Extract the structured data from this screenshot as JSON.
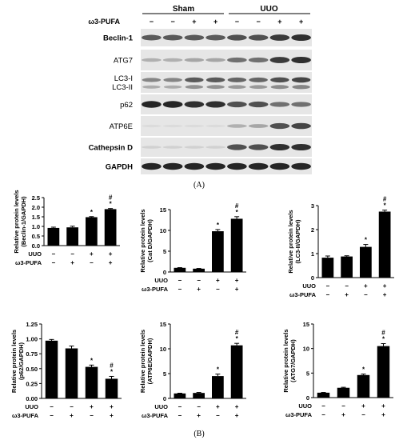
{
  "figure": {
    "panel_a_label": "(A)",
    "panel_b_label": "(B)"
  },
  "blot": {
    "group_headers": [
      "Sham",
      "UUO"
    ],
    "treatment_label": "ω3-PUFA",
    "treatment_signs": [
      "−",
      "−",
      "+",
      "+",
      "−",
      "−",
      "+",
      "+"
    ],
    "rows": [
      {
        "label": "Beclin-1",
        "bold": true,
        "levels": [
          0.65,
          0.65,
          0.65,
          0.65,
          0.7,
          0.7,
          0.8,
          0.85
        ]
      },
      {
        "label": "ATG7",
        "bold": false,
        "levels": [
          0.25,
          0.25,
          0.3,
          0.3,
          0.55,
          0.55,
          0.8,
          0.85
        ]
      },
      {
        "label": "LC3-I",
        "bold": false,
        "levels": [
          0.45,
          0.45,
          0.65,
          0.65,
          0.6,
          0.6,
          0.7,
          0.75
        ]
      },
      {
        "label": "p62",
        "bold": false,
        "levels": [
          0.9,
          0.9,
          0.85,
          0.85,
          0.7,
          0.7,
          0.55,
          0.55
        ]
      },
      {
        "label": "ATP6E",
        "bold": false,
        "levels": [
          0.05,
          0.05,
          0.05,
          0.05,
          0.25,
          0.3,
          0.7,
          0.75
        ]
      },
      {
        "label": "Cathepsin D",
        "bold": true,
        "levels": [
          0.1,
          0.1,
          0.1,
          0.1,
          0.7,
          0.7,
          0.85,
          0.85
        ]
      },
      {
        "label": "GAPDH",
        "bold": true,
        "levels": [
          0.9,
          0.9,
          0.9,
          0.9,
          0.9,
          0.9,
          0.9,
          0.9
        ]
      }
    ],
    "lc3_second_label": "LC3-II"
  },
  "condition_table": {
    "uuo_label": "UUO",
    "pufa_label": "ω3-PUFA",
    "uuo_signs": [
      "−",
      "−",
      "+",
      "+"
    ],
    "pufa_signs": [
      "−",
      "+",
      "−",
      "+"
    ]
  },
  "chart_data": [
    {
      "type": "bar",
      "ylabel": "Relative protein levels\n(Beclin-1/GAPDH)",
      "ylim": [
        0,
        2.5
      ],
      "yticks": [
        "0.0",
        "0.5",
        "1.0",
        "1.5",
        "2.0",
        "2.5"
      ],
      "values": [
        0.92,
        0.95,
        1.48,
        1.9
      ],
      "errors": [
        0.04,
        0.06,
        0.03,
        0.03
      ],
      "annotations": [
        "",
        "",
        "*",
        "#\n*"
      ]
    },
    {
      "type": "bar",
      "ylabel": "Relative protein levels\n(Cat D/GAPDH)",
      "ylim": [
        0,
        15
      ],
      "yticks": [
        "0",
        "5",
        "10",
        "15"
      ],
      "values": [
        1.0,
        0.8,
        9.8,
        12.8
      ],
      "errors": [
        0.05,
        0.05,
        0.4,
        0.5
      ],
      "annotations": [
        "",
        "",
        "*",
        "#\n*"
      ]
    },
    {
      "type": "bar",
      "ylabel": "Relative protein levels\n(LC3-II/GAPDH)",
      "ylim": [
        0,
        3
      ],
      "yticks": [
        "0",
        "1",
        "2",
        "3"
      ],
      "values": [
        0.83,
        0.88,
        1.28,
        2.75
      ],
      "errors": [
        0.07,
        0.03,
        0.1,
        0.06
      ],
      "annotations": [
        "",
        "",
        "*",
        "#\n*"
      ]
    },
    {
      "type": "bar",
      "ylabel": "Relative protein levels\n(p62/GAPDH)",
      "ylim": [
        0,
        1.25
      ],
      "yticks": [
        "0.00",
        "0.25",
        "0.50",
        "0.75",
        "1.00",
        "1.25"
      ],
      "values": [
        0.97,
        0.84,
        0.53,
        0.33
      ],
      "errors": [
        0.02,
        0.04,
        0.03,
        0.04
      ],
      "annotations": [
        "",
        "",
        "*",
        "#\n*"
      ]
    },
    {
      "type": "bar",
      "ylabel": "Relative protein levels\n(ATP6E/GAPDH)",
      "ylim": [
        0,
        15
      ],
      "yticks": [
        "0",
        "5",
        "10",
        "15"
      ],
      "values": [
        1.0,
        1.1,
        4.5,
        10.7
      ],
      "errors": [
        0.05,
        0.1,
        0.4,
        0.4
      ],
      "annotations": [
        "",
        "",
        "*",
        "#\n*"
      ]
    },
    {
      "type": "bar",
      "ylabel": "Relative protein levels\n(ATG7/GAPDH)",
      "ylim": [
        0,
        15
      ],
      "yticks": [
        "0",
        "5",
        "10",
        "15"
      ],
      "values": [
        1.0,
        2.0,
        4.6,
        10.5
      ],
      "errors": [
        0.05,
        0.1,
        0.2,
        0.5
      ],
      "annotations": [
        "",
        "",
        "*",
        "#\n*"
      ]
    }
  ]
}
